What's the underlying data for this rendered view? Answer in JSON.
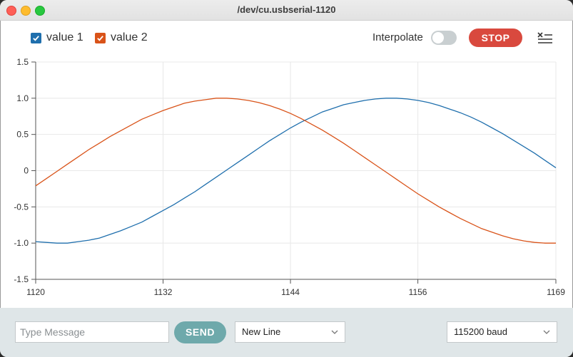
{
  "window": {
    "title": "/dev/cu.usbserial-1120"
  },
  "legend": [
    {
      "label": "value 1",
      "color": "#1f6fad"
    },
    {
      "label": "value 2",
      "color": "#d95319"
    }
  ],
  "toolbar": {
    "interpolate_label": "Interpolate",
    "interpolate_on": false,
    "stop_label": "STOP"
  },
  "footer": {
    "message_placeholder": "Type Message",
    "send_label": "SEND",
    "line_ending": "New Line",
    "baud_rate": "115200 baud"
  },
  "chart_data": {
    "type": "line",
    "x_ticks": [
      1120,
      1132,
      1144,
      1156,
      1169
    ],
    "y_ticks": [
      1.5,
      1.0,
      0.5,
      0,
      -0.5,
      -1.0,
      -1.5
    ],
    "y_tick_labels": [
      "1.5",
      "1.0",
      "0.5",
      "0",
      "-0.5",
      "-1.0",
      "-1.5"
    ],
    "xlim": [
      1120,
      1169
    ],
    "ylim": [
      -1.5,
      1.5
    ],
    "grid": true,
    "series": [
      {
        "name": "value 1",
        "color": "#1f6fad",
        "x": [
          1120,
          1121,
          1122,
          1123,
          1124,
          1125,
          1126,
          1127,
          1128,
          1129,
          1130,
          1131,
          1132,
          1133,
          1134,
          1135,
          1136,
          1137,
          1138,
          1139,
          1140,
          1141,
          1142,
          1143,
          1144,
          1145,
          1146,
          1147,
          1148,
          1149,
          1150,
          1151,
          1152,
          1153,
          1154,
          1155,
          1156,
          1157,
          1158,
          1159,
          1160,
          1161,
          1162,
          1163,
          1164,
          1165,
          1166,
          1167,
          1168,
          1169
        ],
        "y": [
          -0.98,
          -0.99,
          -1.0,
          -1.0,
          -0.98,
          -0.96,
          -0.93,
          -0.88,
          -0.83,
          -0.77,
          -0.71,
          -0.63,
          -0.55,
          -0.47,
          -0.38,
          -0.29,
          -0.19,
          -0.09,
          0.01,
          0.11,
          0.21,
          0.31,
          0.41,
          0.5,
          0.59,
          0.67,
          0.74,
          0.81,
          0.86,
          0.91,
          0.94,
          0.97,
          0.99,
          1.0,
          1.0,
          0.99,
          0.97,
          0.94,
          0.9,
          0.85,
          0.8,
          0.74,
          0.67,
          0.59,
          0.51,
          0.42,
          0.33,
          0.24,
          0.14,
          0.04
        ]
      },
      {
        "name": "value 2",
        "color": "#d95319",
        "x": [
          1120,
          1121,
          1122,
          1123,
          1124,
          1125,
          1126,
          1127,
          1128,
          1129,
          1130,
          1131,
          1132,
          1133,
          1134,
          1135,
          1136,
          1137,
          1138,
          1139,
          1140,
          1141,
          1142,
          1143,
          1144,
          1145,
          1146,
          1147,
          1148,
          1149,
          1150,
          1151,
          1152,
          1153,
          1154,
          1155,
          1156,
          1157,
          1158,
          1159,
          1160,
          1161,
          1162,
          1163,
          1164,
          1165,
          1166,
          1167,
          1168,
          1169
        ],
        "y": [
          -0.21,
          -0.11,
          -0.01,
          0.09,
          0.19,
          0.29,
          0.38,
          0.47,
          0.55,
          0.63,
          0.71,
          0.77,
          0.83,
          0.88,
          0.93,
          0.96,
          0.98,
          1.0,
          1.0,
          0.99,
          0.97,
          0.94,
          0.9,
          0.85,
          0.79,
          0.72,
          0.64,
          0.56,
          0.47,
          0.38,
          0.28,
          0.18,
          0.08,
          -0.02,
          -0.12,
          -0.22,
          -0.32,
          -0.41,
          -0.5,
          -0.58,
          -0.66,
          -0.73,
          -0.8,
          -0.85,
          -0.9,
          -0.94,
          -0.97,
          -0.99,
          -1.0,
          -1.0
        ]
      }
    ]
  }
}
